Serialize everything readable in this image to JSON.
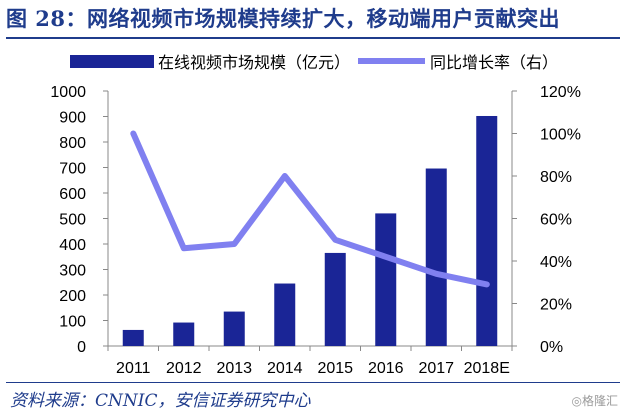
{
  "title": "图 28：网络视频市场规模持续扩大，移动端用户贡献突出",
  "source": "资料来源：CNNIC，安信证券研究中心",
  "watermark": "◎格隆汇",
  "colors": {
    "bar": "#1a2596",
    "line": "#8080f0",
    "title": "#1f3c8c"
  },
  "chart_data": {
    "type": "bar",
    "categories": [
      "2011",
      "2012",
      "2013",
      "2014",
      "2015",
      "2016",
      "2017",
      "2018E"
    ],
    "series": [
      {
        "name": "在线视频市场规模（亿元）",
        "type": "bar",
        "axis": "left",
        "values": [
          63,
          92,
          135,
          245,
          365,
          520,
          696,
          902
        ]
      },
      {
        "name": "同比增长率（右）",
        "type": "line",
        "axis": "right",
        "values": [
          100,
          46,
          48,
          80,
          50,
          42,
          34,
          29
        ]
      }
    ],
    "yleft": {
      "min": 0,
      "max": 1000,
      "ticks": [
        "0",
        "100",
        "200",
        "300",
        "400",
        "500",
        "600",
        "700",
        "800",
        "900",
        "1000"
      ]
    },
    "yright": {
      "min": 0,
      "max": 120,
      "ticks": [
        "0%",
        "20%",
        "40%",
        "60%",
        "80%",
        "100%",
        "120%"
      ]
    },
    "grid": false,
    "legend": "top"
  }
}
